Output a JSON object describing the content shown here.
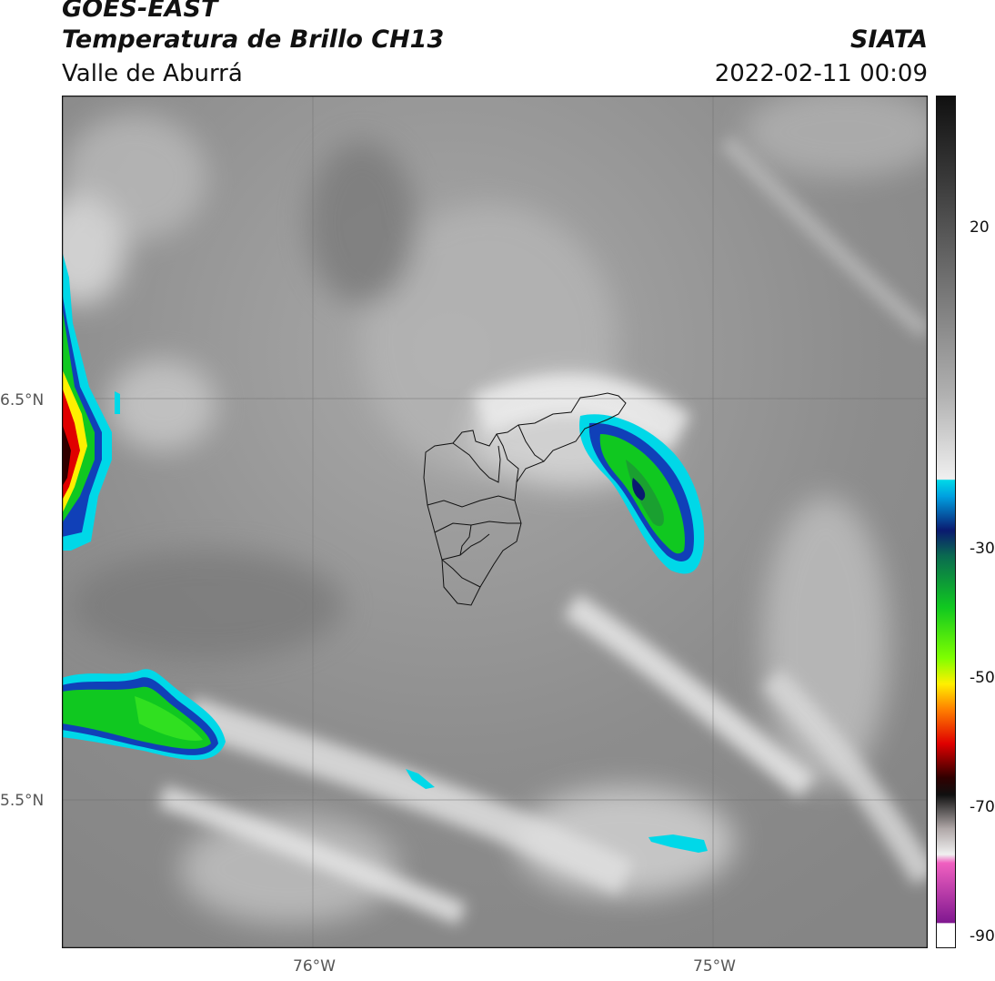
{
  "header": {
    "satellite": "GOES-EAST",
    "product": "Temperatura de Brillo CH13",
    "region": "Valle de Aburrá",
    "agency": "SIATA",
    "datetime": "2022-02-11 00:09"
  },
  "axes": {
    "lat_labels": [
      "6.5°N",
      "5.5°N"
    ],
    "lon_labels": [
      "76°W",
      "75°W"
    ]
  },
  "colorbar": {
    "ticks": [
      "20",
      "-30",
      "-50",
      "-70",
      "-90"
    ],
    "colors": {
      "black": "#101010",
      "gray_light": "#d8d8d8",
      "cyan": "#00d8e8",
      "blue": "#1040b8",
      "navy": "#0a1a70",
      "green": "#10c820",
      "lime": "#80ff00",
      "yellow": "#fff000",
      "orange": "#ff8000",
      "red": "#e00000",
      "darkred": "#300000",
      "pink": "#f060c0",
      "purple": "#801890"
    }
  }
}
